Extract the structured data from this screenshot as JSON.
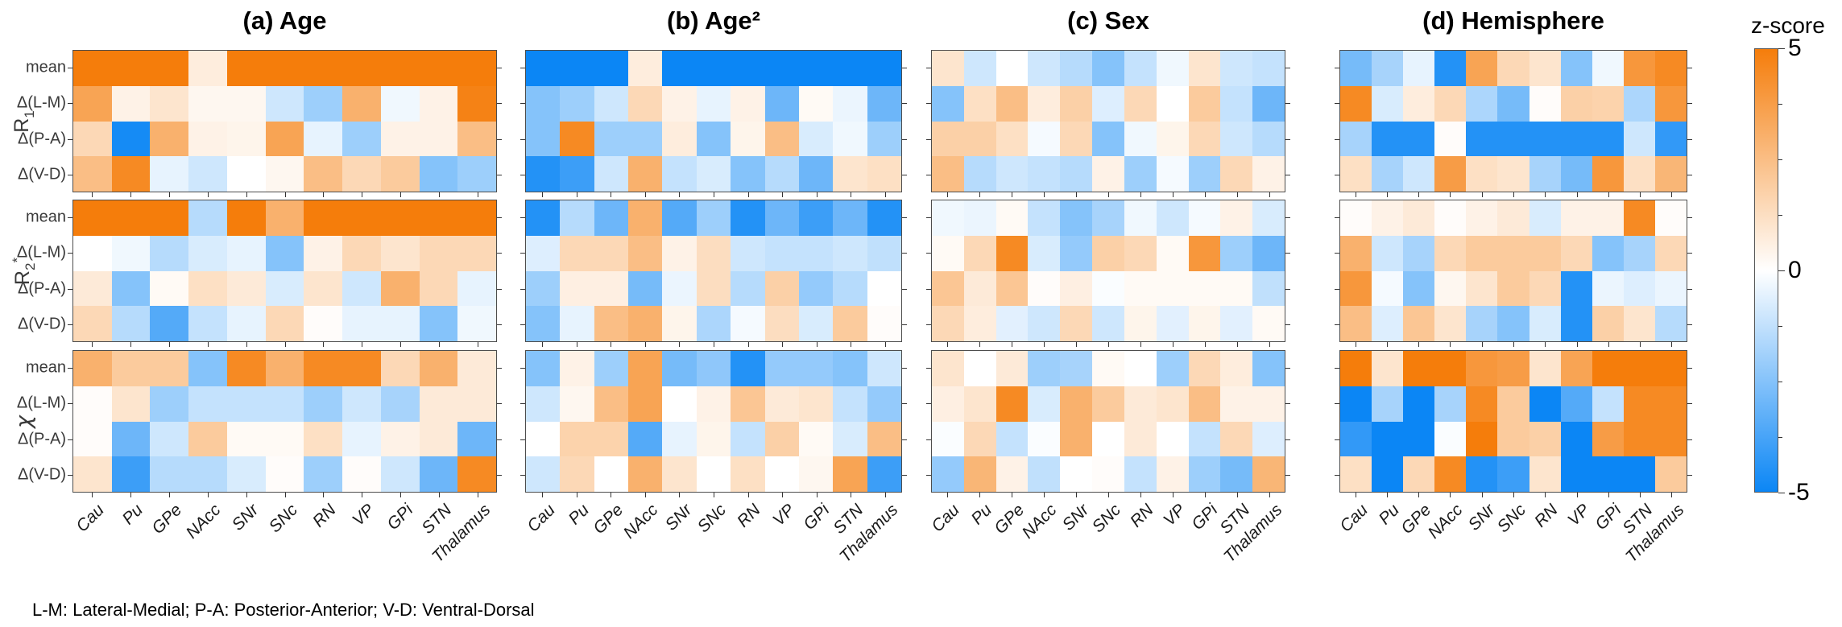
{
  "figure": {
    "caption": "L-M: Lateral-Medial; P-A: Posterior-Anterior; V-D: Ventral-Dorsal",
    "colorbar": {
      "label": "z-score",
      "ticks": [
        "5",
        "0",
        "-5"
      ]
    }
  },
  "chart_data": {
    "type": "heatmap",
    "title": "",
    "zlabel": "z-score",
    "zlim": [
      -5,
      5
    ],
    "colormap": {
      "negative": "#0B86F5",
      "zero": "#FFFFFF",
      "positive": "#F57D0B"
    },
    "x_labels": [
      "Cau",
      "Pu",
      "GPe",
      "NAcc",
      "SNr",
      "SNc",
      "RN",
      "VP",
      "GPi",
      "STN",
      "Thalamus"
    ],
    "row_labels": [
      "mean",
      "Δ(L-M)",
      "Δ(P-A)",
      "Δ(V-D)"
    ],
    "metric_labels": [
      {
        "base": "R",
        "sub": "1",
        "sup": ""
      },
      {
        "base": "R",
        "sub": "2",
        "sup": "*"
      },
      {
        "chi": "χ"
      }
    ],
    "panels": [
      {
        "title": "(a) Age",
        "blocks": [
          {
            "metric": "R1",
            "values": [
              [
                5,
                5,
                5,
                0.7,
                5,
                5,
                5,
                5,
                5,
                5,
                5
              ],
              [
                3.5,
                0.5,
                1,
                0.3,
                0.3,
                -1,
                -2,
                3,
                -0.3,
                0.5,
                4.8
              ],
              [
                1.5,
                -4.8,
                3,
                0.5,
                0.4,
                3.5,
                -0.5,
                -2,
                0.5,
                0.5,
                2.5
              ],
              [
                2.5,
                4.5,
                -0.5,
                -1,
                0,
                0.3,
                2.5,
                1.5,
                2,
                -2.5,
                -2
              ]
            ]
          },
          {
            "metric": "R2*",
            "values": [
              [
                5,
                5,
                5,
                -1.5,
                5,
                3,
                5,
                5,
                5,
                5,
                5
              ],
              [
                0,
                -0.3,
                -1.5,
                -0.8,
                -0.5,
                -2.5,
                0.5,
                1.5,
                1,
                1.5,
                1.5
              ],
              [
                0.8,
                -2.5,
                0.2,
                1.2,
                0.8,
                -0.8,
                1,
                -1,
                3,
                1.5,
                -0.5
              ],
              [
                1.5,
                -1.5,
                -3.5,
                -1.2,
                -0.5,
                1.5,
                0.1,
                -0.5,
                -0.5,
                -2.5,
                -0.3
              ]
            ]
          },
          {
            "metric": "chi",
            "values": [
              [
                3,
                2,
                2,
                -2.5,
                4.5,
                3,
                4.5,
                4.5,
                1.5,
                3,
                0.8
              ],
              [
                0.1,
                1,
                -2,
                -1.2,
                -1.2,
                -1.2,
                -2,
                -1,
                -1.8,
                0.8,
                0.8
              ],
              [
                0.1,
                -3,
                -1,
                2,
                0.2,
                0.2,
                1.2,
                -0.5,
                0.5,
                0.8,
                -3
              ],
              [
                1,
                -4,
                -1.5,
                -1.5,
                -0.8,
                0.1,
                -2,
                0.1,
                -1,
                -3,
                4.5
              ]
            ]
          }
        ]
      },
      {
        "title": "(b) Age²",
        "blocks": [
          {
            "metric": "R1",
            "values": [
              [
                -5,
                -5,
                -5,
                0.7,
                -5,
                -5,
                -5,
                -5,
                -5,
                -5,
                -5
              ],
              [
                -2.5,
                -2,
                -1,
                1.5,
                0.5,
                -0.5,
                0.5,
                -3,
                0.2,
                -0.4,
                -3
              ],
              [
                -2.5,
                4.5,
                -2,
                -2,
                0.7,
                -2.5,
                0.4,
                2.5,
                -0.8,
                -0.3,
                -2
              ],
              [
                -4.5,
                -4,
                -1,
                3,
                -1.2,
                -0.8,
                -2.5,
                -1.5,
                -3,
                1,
                1.2
              ]
            ]
          },
          {
            "metric": "R2*",
            "values": [
              [
                -4.5,
                -1.5,
                -3,
                3,
                -3.5,
                -2,
                -4.5,
                -3,
                -4,
                -3,
                -4.5
              ],
              [
                -0.7,
                1.5,
                1.5,
                2.5,
                0.5,
                1.3,
                -1,
                -1.2,
                -1.2,
                -1,
                -1.3
              ],
              [
                -2,
                0.6,
                0.6,
                -2.8,
                -0.4,
                1.3,
                -1.5,
                1.8,
                -2.2,
                -1.5,
                0
              ],
              [
                -2.5,
                -0.5,
                2.5,
                3,
                0.4,
                -1.7,
                -0.2,
                1.3,
                -0.8,
                2,
                0.1
              ]
            ]
          },
          {
            "metric": "chi",
            "values": [
              [
                -2.5,
                0.5,
                -2,
                3.5,
                -2.8,
                -2.3,
                -4.5,
                -2.2,
                -2.2,
                -2.5,
                -1
              ],
              [
                -1,
                0.3,
                2.5,
                3.5,
                0,
                0.5,
                2.2,
                0.8,
                1,
                -1.2,
                -2.2
              ],
              [
                0,
                1.7,
                1.7,
                -3.5,
                -0.5,
                0.4,
                -1.2,
                1.8,
                0.2,
                -0.8,
                2.5
              ],
              [
                -1,
                1.5,
                0,
                3,
                1,
                0,
                1.2,
                0,
                0.3,
                3.5,
                -4
              ]
            ]
          }
        ]
      },
      {
        "title": "(c) Sex",
        "blocks": [
          {
            "metric": "R1",
            "values": [
              [
                1,
                -1,
                0,
                -1,
                -1.5,
                -2.5,
                -1.2,
                -0.3,
                1,
                -1,
                -1.2
              ],
              [
                -2.5,
                1.2,
                2.5,
                0.7,
                1.8,
                -0.7,
                1.5,
                0,
                2,
                -1.2,
                -3
              ],
              [
                1.8,
                1.8,
                1.2,
                -0.2,
                1.5,
                -2.5,
                -0.3,
                0.4,
                1.5,
                -1,
                -1.5
              ],
              [
                2.5,
                -1.5,
                -1,
                -1.2,
                -1.5,
                0.5,
                -2,
                -0.2,
                -2,
                1.5,
                0.5
              ]
            ]
          },
          {
            "metric": "R2*",
            "values": [
              [
                -0.3,
                -0.4,
                0.2,
                -1.2,
                -2.5,
                -1.8,
                -0.3,
                -1,
                -0.2,
                0.5,
                -0.8
              ],
              [
                0.2,
                1.5,
                4.5,
                -0.8,
                -2.2,
                1.8,
                1.5,
                0.2,
                4,
                -2,
                -3
              ],
              [
                2.2,
                0.8,
                2.2,
                0.1,
                0.6,
                -0.1,
                0.2,
                0.2,
                0.2,
                0.2,
                -1.3
              ],
              [
                1.5,
                0.7,
                -0.6,
                -1,
                1.5,
                -1,
                0.4,
                -0.6,
                0.4,
                -0.6,
                0.2
              ]
            ]
          },
          {
            "metric": "chi",
            "values": [
              [
                1,
                0,
                0.8,
                -2,
                -1.8,
                0.2,
                0,
                -2,
                1.5,
                0.7,
                -2.5
              ],
              [
                0.6,
                1,
                4.5,
                -0.8,
                3,
                2,
                0.8,
                1,
                2.5,
                0.5,
                0.5
              ],
              [
                -0.1,
                1.5,
                -1.2,
                -0.1,
                3,
                0,
                0.8,
                0,
                -1.2,
                1.5,
                -0.7
              ],
              [
                -2.2,
                2.8,
                0.5,
                -1.3,
                0,
                0.1,
                -1.2,
                0.5,
                -2,
                -2.8,
                2.8
              ]
            ]
          }
        ]
      },
      {
        "title": "(d) Hemisphere",
        "blocks": [
          {
            "metric": "R1",
            "values": [
              [
                -2.8,
                -1.8,
                -0.5,
                -4.5,
                3.5,
                1.5,
                1,
                -2.5,
                -0.3,
                4,
                4.5
              ],
              [
                4.5,
                -0.8,
                0.7,
                1.5,
                -1.7,
                -2.8,
                0.1,
                1.8,
                1.7,
                -1.7,
                4
              ],
              [
                -1.8,
                -4.5,
                -4.5,
                0.1,
                -4.5,
                -4.5,
                -4.5,
                -4.5,
                -4.5,
                -1,
                -4.2
              ],
              [
                1.2,
                -1.8,
                -1,
                3.8,
                1.2,
                1,
                -1.8,
                -2.8,
                4,
                1.2,
                2.8
              ]
            ]
          },
          {
            "metric": "R2*",
            "values": [
              [
                0.1,
                0.5,
                0.8,
                0.1,
                0.5,
                0.8,
                -0.8,
                0.5,
                0.5,
                4.5,
                0.1
              ],
              [
                3,
                -1,
                -1.8,
                1.5,
                2,
                2,
                2,
                1.5,
                -2.5,
                -1.8,
                1.5
              ],
              [
                4,
                -0.2,
                -2.5,
                0.3,
                1,
                2,
                1.5,
                -4.5,
                -0.4,
                -0.7,
                -0.4
              ],
              [
                2.5,
                -0.7,
                2.2,
                1,
                -1.8,
                -2.5,
                -0.8,
                -4.5,
                1.8,
                1,
                -1.5
              ]
            ]
          },
          {
            "metric": "chi",
            "values": [
              [
                5,
                1,
                5,
                5,
                4,
                3.8,
                1,
                3.5,
                5,
                5,
                5
              ],
              [
                -5,
                -1.8,
                -5,
                -1.8,
                4.5,
                2,
                -5,
                -3.5,
                -1.2,
                4.5,
                4.5
              ],
              [
                -4.2,
                -5,
                -5,
                -0.1,
                5,
                2,
                1.8,
                -5,
                3.8,
                4.5,
                4.5
              ],
              [
                1.2,
                -5,
                1.5,
                4.5,
                -4.5,
                -4,
                1,
                -5,
                -5,
                -5,
                2
              ]
            ]
          }
        ]
      }
    ]
  }
}
